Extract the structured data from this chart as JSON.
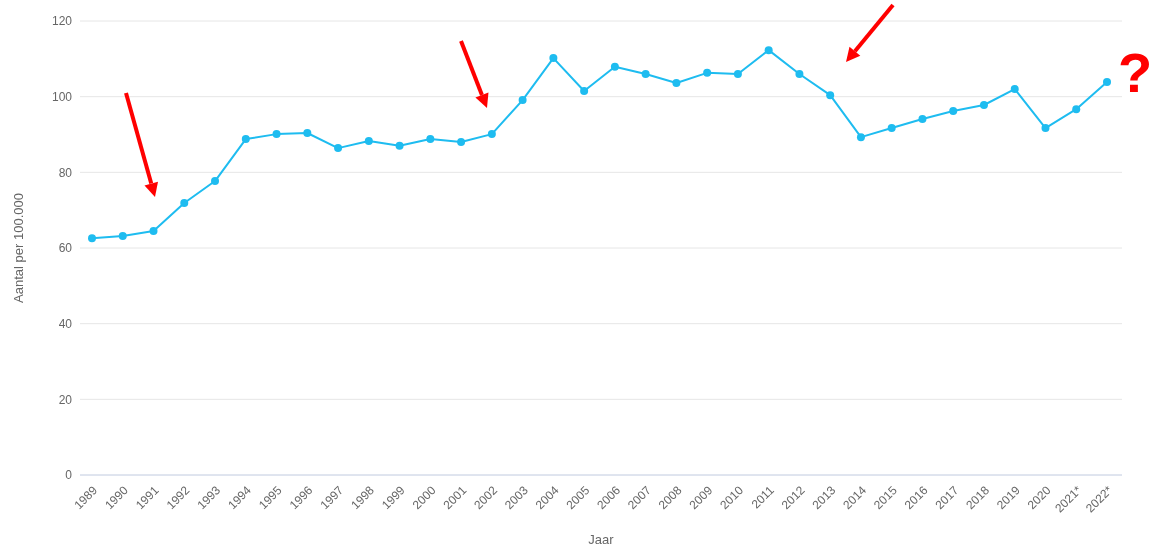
{
  "chart_data": {
    "type": "line",
    "xlabel": "Jaar",
    "ylabel": "Aantal per 100.000",
    "categories": [
      "1989",
      "1990",
      "1991",
      "1992",
      "1993",
      "1994",
      "1995",
      "1996",
      "1997",
      "1998",
      "1999",
      "2000",
      "2001",
      "2002",
      "2003",
      "2004",
      "2005",
      "2006",
      "2007",
      "2008",
      "2009",
      "2010",
      "2011",
      "2012",
      "2013",
      "2014",
      "2015",
      "2016",
      "2017",
      "2018",
      "2019",
      "2020",
      "2021*",
      "2022*"
    ],
    "series": [
      {
        "color": "#1ebcf0",
        "values": [
          62.6,
          63.2,
          64.5,
          71.9,
          77.7,
          88.8,
          90.1,
          90.4,
          86.4,
          88.3,
          87.0,
          88.8,
          88.0,
          90.1,
          99.1,
          110.2,
          101.5,
          107.9,
          106.0,
          103.6,
          106.3,
          106.0,
          112.3,
          106.0,
          100.4,
          89.3,
          91.7,
          94.1,
          96.2,
          97.8,
          102.0,
          91.7,
          96.7,
          103.9
        ]
      }
    ],
    "ylim": [
      0,
      120
    ],
    "yticks": [
      0,
      20,
      40,
      60,
      80,
      100,
      120
    ],
    "grid": "y",
    "marker": "circle",
    "annotations": [
      "?"
    ]
  }
}
